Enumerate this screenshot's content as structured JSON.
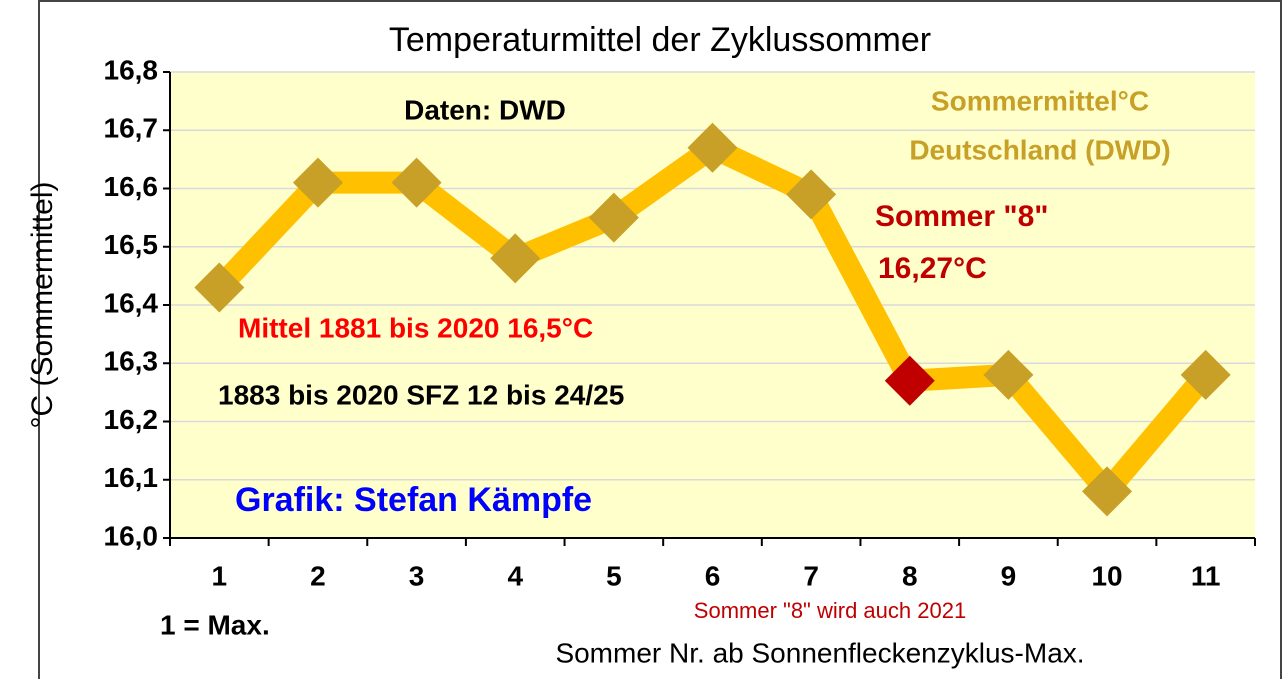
{
  "chart_data": {
    "type": "line",
    "title": "Temperaturmittel der Zyklussommer",
    "y_label": "°C (Sommermittel)",
    "x_label": "Sommer Nr. ab Sonnenfleckenzyklus-Max.",
    "categories": [
      "1",
      "2",
      "3",
      "4",
      "5",
      "6",
      "7",
      "8",
      "9",
      "10",
      "11"
    ],
    "series": [
      {
        "name": "Sommermittel°C",
        "color": "#ffc000",
        "values": [
          16.43,
          16.61,
          16.61,
          16.48,
          16.55,
          16.67,
          16.59,
          16.27,
          16.28,
          16.08,
          16.28
        ],
        "marker_colors": [
          "#c8a028",
          "#c8a028",
          "#c8a028",
          "#c8a028",
          "#c8a028",
          "#c8a028",
          "#c8a028",
          "#c00000",
          "#c8a028",
          "#c8a028",
          "#c8a028"
        ]
      }
    ],
    "ylim": [
      16.0,
      16.8
    ],
    "yticks": [
      {
        "value": 16.0,
        "label": "16,0"
      },
      {
        "value": 16.1,
        "label": "16,1"
      },
      {
        "value": 16.2,
        "label": "16,2"
      },
      {
        "value": 16.3,
        "label": "16,3"
      },
      {
        "value": 16.4,
        "label": "16,4"
      },
      {
        "value": 16.5,
        "label": "16,5"
      },
      {
        "value": 16.6,
        "label": "16,6"
      },
      {
        "value": 16.7,
        "label": "16,7"
      },
      {
        "value": 16.8,
        "label": "16,8"
      }
    ],
    "grid": true,
    "plot_background": "#ffffcc",
    "annotations": [
      {
        "text": "Daten: DWD",
        "color": "#000000"
      },
      {
        "text": "Sommermittel°C",
        "color": "#c8a028"
      },
      {
        "text": "Deutschland (DWD)",
        "color": "#c8a028"
      },
      {
        "text": "Sommer \"8\"",
        "color": "#c00000"
      },
      {
        "text": "16,27°C",
        "color": "#c00000"
      },
      {
        "text": "Mittel 1881 bis 2020 16,5°C",
        "color": "#ff0000"
      },
      {
        "text": "1883 bis 2020 SFZ 12 bis 24/25",
        "color": "#000000"
      },
      {
        "text": "Grafik: Stefan Kämpfe",
        "color": "#0000ff"
      },
      {
        "text": "1 = Max.",
        "color": "#000000"
      },
      {
        "text": "Sommer \"8\"  wird auch 2021",
        "color": "#c00000"
      }
    ]
  }
}
